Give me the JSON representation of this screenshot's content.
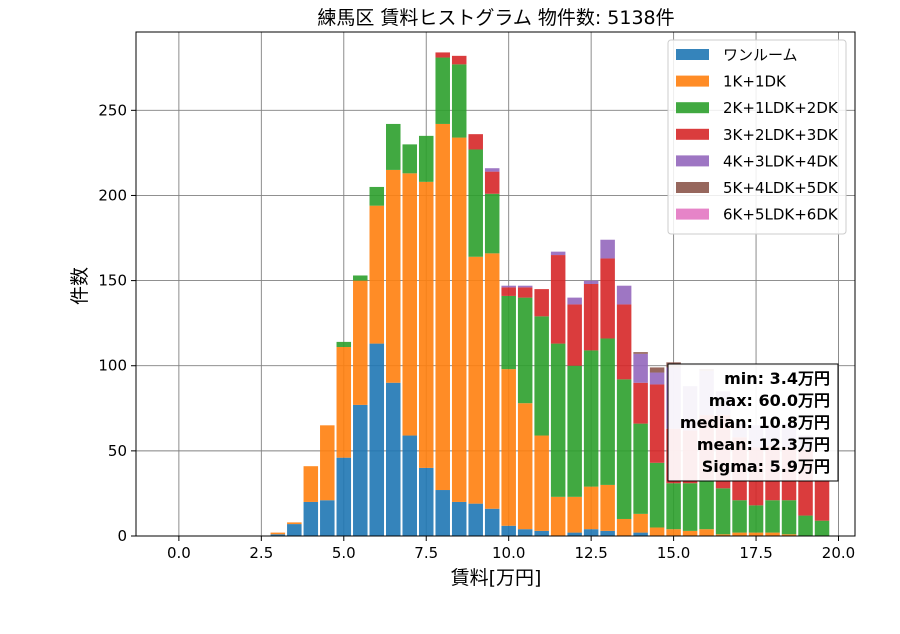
{
  "chart_data": {
    "type": "bar",
    "stacked": true,
    "title": "練馬区 賃料ヒストグラム  物件数: 5138件",
    "xlabel": "賃料[万円]",
    "ylabel": "件数",
    "xlim": [
      -1.3,
      20.5
    ],
    "ylim": [
      0,
      296
    ],
    "grid": true,
    "bin_width": 0.5,
    "x": [
      0.0,
      0.5,
      1.0,
      1.5,
      2.0,
      2.5,
      3.0,
      3.5,
      4.0,
      4.5,
      5.0,
      5.5,
      6.0,
      6.5,
      7.0,
      7.5,
      8.0,
      8.5,
      9.0,
      9.5,
      10.0,
      10.5,
      11.0,
      11.5,
      12.0,
      12.5,
      13.0,
      13.5,
      14.0,
      14.5,
      15.0,
      15.5,
      16.0,
      16.5,
      17.0,
      17.5,
      18.0,
      18.5,
      19.0,
      19.5
    ],
    "xticks": [
      "0.0",
      "2.5",
      "5.0",
      "7.5",
      "10.0",
      "12.5",
      "15.0",
      "17.5",
      "20.0"
    ],
    "xtick_values": [
      0,
      2.5,
      5,
      7.5,
      10,
      12.5,
      15,
      17.5,
      20
    ],
    "yticks": [
      0,
      50,
      100,
      150,
      200,
      250
    ],
    "legend_position": "top-right",
    "series": [
      {
        "name": "ワンルーム",
        "color": "#1f77b4",
        "values": [
          0,
          0,
          0,
          0,
          0,
          0,
          1,
          7,
          20,
          21,
          46,
          77,
          113,
          90,
          59,
          40,
          27,
          20,
          19,
          16,
          6,
          4,
          3,
          0,
          2,
          4,
          3,
          0,
          2,
          0,
          0,
          0,
          0,
          0,
          0,
          0,
          0,
          0,
          0,
          0
        ]
      },
      {
        "name": "1K+1DK",
        "color": "#ff7f0e",
        "values": [
          0,
          0,
          0,
          0,
          0,
          0,
          1,
          1,
          21,
          44,
          65,
          73,
          81,
          125,
          154,
          168,
          215,
          214,
          145,
          150,
          92,
          74,
          56,
          23,
          21,
          25,
          27,
          10,
          11,
          5,
          4,
          3,
          4,
          1,
          2,
          2,
          2,
          1,
          0,
          0
        ]
      },
      {
        "name": "2K+1LDK+2DK",
        "color": "#2ca02c",
        "values": [
          0,
          0,
          0,
          0,
          0,
          0,
          0,
          0,
          0,
          0,
          3,
          3,
          11,
          27,
          17,
          27,
          39,
          43,
          63,
          35,
          43,
          62,
          70,
          90,
          77,
          80,
          86,
          82,
          53,
          38,
          27,
          28,
          29,
          27,
          19,
          16,
          19,
          20,
          12,
          9
        ]
      },
      {
        "name": "3K+2LDK+3DK",
        "color": "#d62728",
        "values": [
          0,
          0,
          0,
          0,
          0,
          0,
          0,
          0,
          0,
          0,
          0,
          0,
          0,
          0,
          0,
          0,
          3,
          5,
          9,
          13,
          5,
          6,
          16,
          52,
          36,
          39,
          47,
          44,
          24,
          46,
          32,
          31,
          38,
          43,
          37,
          34,
          32,
          31,
          39,
          24
        ]
      },
      {
        "name": "4K+3LDK+4DK",
        "color": "#9467bd",
        "values": [
          0,
          0,
          0,
          0,
          0,
          0,
          0,
          0,
          0,
          0,
          0,
          0,
          0,
          0,
          0,
          0,
          0,
          0,
          0,
          2,
          1,
          1,
          0,
          2,
          4,
          2,
          11,
          11,
          17,
          7,
          36,
          26,
          26,
          14,
          8,
          13,
          12,
          14,
          8,
          0
        ]
      },
      {
        "name": "5K+4LDK+5DK",
        "color": "#8c564b",
        "values": [
          0,
          0,
          0,
          0,
          0,
          0,
          0,
          0,
          0,
          0,
          0,
          0,
          0,
          0,
          0,
          0,
          0,
          0,
          0,
          0,
          0,
          0,
          0,
          0,
          0,
          0,
          0,
          0,
          1,
          3,
          3,
          0,
          1,
          0,
          0,
          0,
          0,
          0,
          0,
          0
        ]
      },
      {
        "name": "6K+5LDK+6DK",
        "color": "#e377c2",
        "values": [
          0,
          0,
          0,
          0,
          0,
          0,
          0,
          0,
          0,
          0,
          0,
          0,
          0,
          0,
          0,
          0,
          0,
          0,
          0,
          0,
          0,
          0,
          0,
          0,
          0,
          0,
          0,
          0,
          0,
          0,
          0,
          0,
          0,
          0,
          0,
          0,
          0,
          0,
          0,
          0
        ]
      }
    ],
    "stats": {
      "min": "min: 3.4万円",
      "max": "max: 60.0万円",
      "median": "median: 10.8万円",
      "mean": "mean: 12.3万円",
      "sigma": "Sigma: 5.9万円"
    }
  }
}
